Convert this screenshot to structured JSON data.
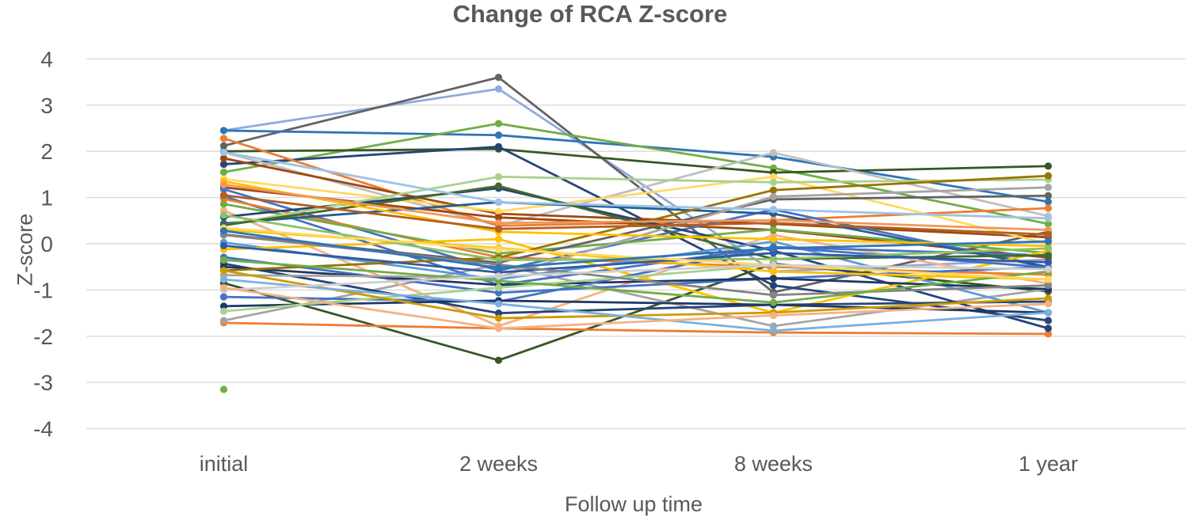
{
  "chart_data": {
    "type": "line",
    "title": "Change of RCA Z-score",
    "xlabel": "Follow up time",
    "ylabel": "Z-score",
    "categories": [
      "initial",
      "2 weeks",
      "8 weeks",
      "1 year"
    ],
    "yticks": [
      "4",
      "3",
      "2",
      "1",
      "0",
      "-1",
      "-2",
      "-3",
      "-4"
    ],
    "ylim": [
      -4,
      4
    ],
    "grid": true,
    "legend": "none",
    "marker": "circle",
    "colors": {
      "text": "#595959",
      "grid": "#D9D9D9",
      "background": "#FFFFFF"
    },
    "series": [
      {
        "color": "#8FAADC",
        "values": [
          2.45,
          3.35,
          -0.6,
          -0.34
        ]
      },
      {
        "color": "#636363",
        "values": [
          2.12,
          3.6,
          -1.05,
          0.26
        ]
      },
      {
        "color": "#2E75B6",
        "values": [
          2.45,
          2.35,
          1.88,
          0.91
        ]
      },
      {
        "color": "#70AD47",
        "values": [
          1.55,
          2.6,
          1.64,
          0.43
        ]
      },
      {
        "color": "#375623",
        "values": [
          2.0,
          2.05,
          1.54,
          1.68
        ]
      },
      {
        "color": "#264478",
        "values": [
          1.72,
          2.1,
          -0.9,
          -1.66
        ]
      },
      {
        "color": "#375623",
        "values": [
          -0.85,
          -2.52,
          -0.43,
          -1.03
        ]
      },
      {
        "color": "#ED7D31",
        "values": [
          -1.71,
          -1.83,
          -1.92,
          -1.95
        ]
      },
      {
        "color": "#A5A5A5",
        "values": [
          -1.66,
          -0.45,
          -1.78,
          -0.98
        ]
      },
      {
        "color": "#BFBFBF",
        "values": [
          1.98,
          0.39,
          1.97,
          0.6
        ]
      },
      {
        "color": "#F4B183",
        "values": [
          0.72,
          -1.78,
          0.19,
          -0.86
        ]
      },
      {
        "color": "#ED7D31",
        "values": [
          2.28,
          0.39,
          0.51,
          0.77
        ]
      },
      {
        "color": "#9E480E",
        "values": [
          1.85,
          0.65,
          0.43,
          0.14
        ]
      },
      {
        "color": "#FFD966",
        "values": [
          1.4,
          0.7,
          1.45,
          0.0
        ]
      },
      {
        "color": "#9E480E",
        "values": [
          1.22,
          0.57,
          0.3,
          -0.3
        ]
      },
      {
        "color": "#4472C4",
        "values": [
          1.18,
          -0.58,
          0.74,
          -0.5
        ]
      },
      {
        "color": "#4472C4",
        "values": [
          1.03,
          -0.89,
          -0.07,
          -0.25
        ]
      },
      {
        "color": "#ED7D31",
        "values": [
          0.97,
          -0.29,
          -0.5,
          -0.67
        ]
      },
      {
        "color": "#70AD47",
        "values": [
          0.86,
          -0.21,
          0.31,
          -0.2
        ]
      },
      {
        "color": "#264478",
        "values": [
          0.58,
          1.2,
          -0.15,
          -1.83
        ]
      },
      {
        "color": "#255E91",
        "values": [
          0.44,
          0.9,
          0.65,
          -0.51
        ]
      },
      {
        "color": "#A9D18E",
        "values": [
          0.4,
          1.45,
          1.33,
          1.39
        ]
      },
      {
        "color": "#636363",
        "values": [
          0.2,
          -0.41,
          0.96,
          1.04
        ]
      },
      {
        "color": "#5B9BD5",
        "values": [
          0.03,
          -0.77,
          0.05,
          -1.49
        ]
      },
      {
        "color": "#FFC000",
        "values": [
          -0.12,
          0.1,
          -1.49,
          -0.15
        ]
      },
      {
        "color": "#4472C4",
        "values": [
          -0.29,
          -1.06,
          -0.75,
          -0.5
        ]
      },
      {
        "color": "#264478",
        "values": [
          -0.43,
          -1.5,
          -1.32,
          -1.25
        ]
      },
      {
        "color": "#1F3864",
        "values": [
          -0.5,
          -0.89,
          -0.75,
          -0.98
        ]
      },
      {
        "color": "#997300",
        "values": [
          -0.58,
          -0.3,
          1.16,
          1.47
        ]
      },
      {
        "color": "#43682B",
        "values": [
          0.4,
          1.25,
          -0.33,
          -0.25
        ]
      },
      {
        "color": "#A5A5A5",
        "values": [
          -0.68,
          -0.72,
          1.02,
          1.22
        ]
      },
      {
        "color": "#4472C4",
        "values": [
          -1.15,
          -1.25,
          -0.07,
          -0.51
        ]
      },
      {
        "color": "#1F3864",
        "values": [
          -1.35,
          -1.23,
          -1.32,
          -1.49
        ]
      },
      {
        "color": "#A9D18E",
        "values": [
          -1.46,
          -0.95,
          -0.46,
          -0.77
        ]
      },
      {
        "color": "#70AD47",
        "values": [
          -3.15,
          null,
          null,
          null
        ]
      },
      {
        "color": "#FFC000",
        "values": [
          1.35,
          0.26,
          0.1,
          -0.05
        ]
      },
      {
        "color": "#FFC000",
        "values": [
          0.3,
          -0.09,
          -0.6,
          -0.77
        ]
      },
      {
        "color": "#CC9A00",
        "values": [
          -0.58,
          -1.61,
          -1.49,
          -1.18
        ]
      },
      {
        "color": "#F1975A",
        "values": [
          1.28,
          0.45,
          0.51,
          0.3
        ]
      },
      {
        "color": "#9DC3E6",
        "values": [
          1.98,
          0.9,
          0.74,
          0.55
        ]
      },
      {
        "color": "#7CAFDD",
        "values": [
          -0.77,
          -1.3,
          -1.88,
          -1.49
        ]
      },
      {
        "color": "#8CC168",
        "values": [
          0.62,
          -0.35,
          -0.33,
          -0.1
        ]
      },
      {
        "color": "#335AA1",
        "values": [
          -0.04,
          -0.62,
          -0.2,
          -0.4
        ]
      },
      {
        "color": "#B25F21",
        "values": [
          1.05,
          0.32,
          0.45,
          0.2
        ]
      },
      {
        "color": "#848484",
        "values": [
          0.19,
          -0.45,
          -1.11,
          -0.9
        ]
      },
      {
        "color": "#70AD47",
        "values": [
          -0.35,
          -0.8,
          -1.27,
          -0.6
        ]
      },
      {
        "color": "#FFD966",
        "values": [
          0.34,
          -0.12,
          -0.46,
          -0.77
        ]
      },
      {
        "color": "#D0CECE",
        "values": [
          -1.0,
          -0.7,
          -0.46,
          -0.55
        ]
      },
      {
        "color": "#F4B183",
        "values": [
          -0.95,
          -1.83,
          -1.55,
          -1.3
        ]
      },
      {
        "color": "#2E75B6",
        "values": [
          0.28,
          -0.52,
          -0.1,
          0.05
        ]
      }
    ]
  }
}
